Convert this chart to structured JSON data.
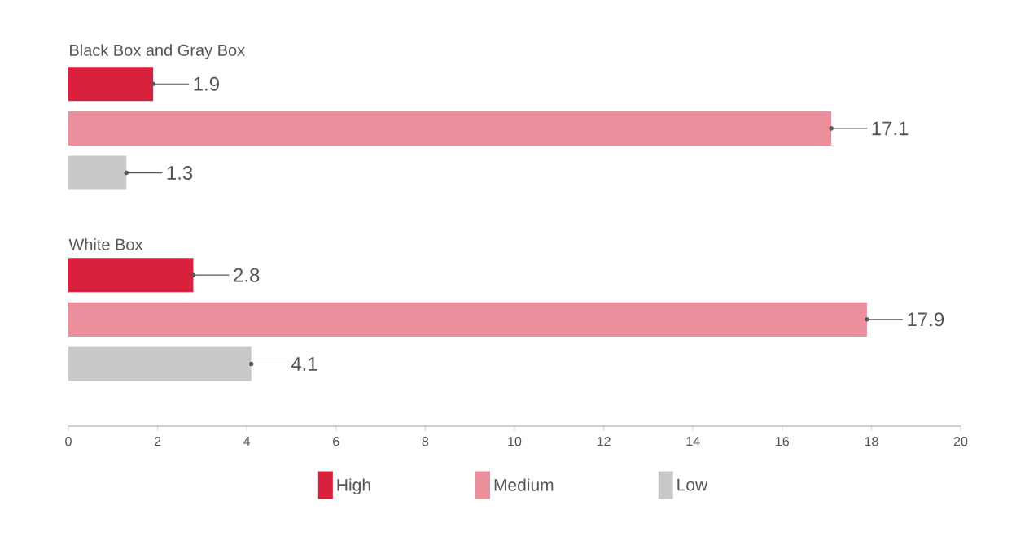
{
  "chart_data": {
    "type": "bar",
    "orientation": "horizontal",
    "categories": [
      "Black Box and Gray Box",
      "White Box"
    ],
    "series": [
      {
        "name": "High",
        "color": "#d9213d",
        "values": [
          1.9,
          2.8
        ]
      },
      {
        "name": "Medium",
        "color": "#eb8f9d",
        "values": [
          17.1,
          17.9
        ]
      },
      {
        "name": "Low",
        "color": "#c9c7c9",
        "values": [
          1.3,
          4.1
        ]
      }
    ],
    "xlim": [
      0,
      20
    ],
    "xticks": [
      0,
      2,
      4,
      6,
      8,
      10,
      12,
      14,
      16,
      18,
      20
    ],
    "data_labels": true,
    "legend": "bottom",
    "grid": false
  }
}
